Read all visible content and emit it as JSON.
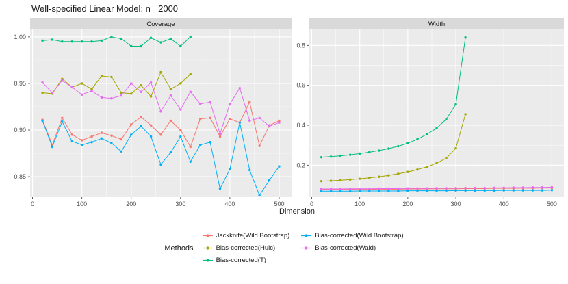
{
  "title": "Well-specified Linear Model: n= 2000",
  "xlabel": "Dimension",
  "legend": {
    "title": "Methods",
    "entries": [
      {
        "label": "Jackknife(Wild Bootstrap)",
        "color": "#F8766D"
      },
      {
        "label": "Bias-corrected(Hulc)",
        "color": "#A3A500"
      },
      {
        "label": "Bias-corrected(T)",
        "color": "#00BF7D"
      },
      {
        "label": "Bias-corrected(Wild Bootstrap)",
        "color": "#00B0F6"
      },
      {
        "label": "Bias-corrected(Wald)",
        "color": "#E76BF3"
      }
    ]
  },
  "theme": {
    "panel_bg": "#EBEBEB",
    "strip_bg": "#D9D9D9",
    "grid": "#FFFFFF",
    "axis_text": "#4D4D4D",
    "title_text": "#1A1A1A",
    "tick": "#333333"
  },
  "chart_data": [
    {
      "type": "line",
      "title": "Coverage",
      "xlabel": "Dimension",
      "xlim": [
        -5,
        525
      ],
      "ylim": [
        0.828,
        1.008
      ],
      "xticks": [
        0,
        100,
        200,
        300,
        400,
        500
      ],
      "xtick_labels": [
        "0",
        "100",
        "200",
        "300",
        "400",
        "500"
      ],
      "yticks": [
        0.85,
        0.9,
        0.95,
        1.0
      ],
      "ytick_labels": [
        "0.85",
        "0.90",
        "0.95",
        "1.00"
      ],
      "series": [
        {
          "name": "Jackknife(Wild Bootstrap)",
          "color": "#F8766D",
          "x": [
            20,
            40,
            60,
            80,
            100,
            120,
            140,
            160,
            180,
            200,
            220,
            240,
            260,
            280,
            300,
            320,
            340,
            360,
            380,
            400,
            420,
            440,
            460,
            480,
            500
          ],
          "values": [
            0.911,
            0.884,
            0.913,
            0.895,
            0.889,
            0.893,
            0.897,
            0.894,
            0.89,
            0.906,
            0.914,
            0.905,
            0.895,
            0.91,
            0.9,
            0.882,
            0.912,
            0.913,
            0.893,
            0.912,
            0.908,
            0.93,
            0.883,
            0.905,
            0.91
          ]
        },
        {
          "name": "Bias-corrected(Hulc)",
          "color": "#A3A500",
          "x": [
            20,
            40,
            60,
            80,
            100,
            120,
            140,
            160,
            180,
            200,
            220,
            240,
            260,
            280,
            300,
            320
          ],
          "values": [
            0.94,
            0.939,
            0.955,
            0.946,
            0.95,
            0.944,
            0.958,
            0.957,
            0.94,
            0.939,
            0.948,
            0.936,
            0.962,
            0.944,
            0.95,
            0.96
          ]
        },
        {
          "name": "Bias-corrected(T)",
          "color": "#00BF7D",
          "x": [
            20,
            40,
            60,
            80,
            100,
            120,
            140,
            160,
            180,
            200,
            220,
            240,
            260,
            280,
            300,
            320
          ],
          "values": [
            0.996,
            0.997,
            0.995,
            0.995,
            0.995,
            0.995,
            0.996,
            1.0,
            0.998,
            0.99,
            0.99,
            0.999,
            0.994,
            0.998,
            0.99,
            1.0
          ]
        },
        {
          "name": "Bias-corrected(Wild Bootstrap)",
          "color": "#00B0F6",
          "x": [
            20,
            40,
            60,
            80,
            100,
            120,
            140,
            160,
            180,
            200,
            220,
            240,
            260,
            280,
            300,
            320,
            340,
            360,
            380,
            400,
            420,
            440,
            460,
            480,
            500
          ],
          "values": [
            0.91,
            0.882,
            0.909,
            0.888,
            0.884,
            0.887,
            0.891,
            0.886,
            0.877,
            0.895,
            0.904,
            0.893,
            0.863,
            0.876,
            0.893,
            0.866,
            0.884,
            0.887,
            0.837,
            0.858,
            0.908,
            0.857,
            0.83,
            0.846,
            0.861
          ]
        },
        {
          "name": "Bias-corrected(Wald)",
          "color": "#E76BF3",
          "x": [
            20,
            40,
            60,
            80,
            100,
            120,
            140,
            160,
            180,
            200,
            220,
            240,
            260,
            280,
            300,
            320,
            340,
            360,
            380,
            400,
            420,
            440,
            460,
            480,
            500
          ],
          "values": [
            0.951,
            0.94,
            0.953,
            0.946,
            0.938,
            0.942,
            0.935,
            0.934,
            0.937,
            0.95,
            0.941,
            0.951,
            0.92,
            0.937,
            0.922,
            0.941,
            0.928,
            0.93,
            0.896,
            0.928,
            0.945,
            0.91,
            0.913,
            0.904,
            0.908
          ]
        }
      ]
    },
    {
      "type": "line",
      "title": "Width",
      "xlabel": "Dimension",
      "xlim": [
        -5,
        525
      ],
      "ylim": [
        0.04,
        0.88
      ],
      "xticks": [
        0,
        100,
        200,
        300,
        400,
        500
      ],
      "xtick_labels": [
        "0",
        "100",
        "200",
        "300",
        "400",
        "500"
      ],
      "yticks": [
        0.2,
        0.4,
        0.6,
        0.8
      ],
      "ytick_labels": [
        "0.2",
        "0.4",
        "0.6",
        "0.8"
      ],
      "series": [
        {
          "name": "Jackknife(Wild Bootstrap)",
          "color": "#F8766D",
          "x": [
            20,
            40,
            60,
            80,
            100,
            120,
            140,
            160,
            180,
            200,
            220,
            240,
            260,
            280,
            300,
            320,
            340,
            360,
            380,
            400,
            420,
            440,
            460,
            480,
            500
          ],
          "values": [
            0.078,
            0.078,
            0.078,
            0.079,
            0.079,
            0.079,
            0.08,
            0.08,
            0.08,
            0.081,
            0.081,
            0.081,
            0.082,
            0.082,
            0.082,
            0.083,
            0.083,
            0.083,
            0.084,
            0.084,
            0.084,
            0.085,
            0.085,
            0.086,
            0.086
          ]
        },
        {
          "name": "Bias-corrected(Hulc)",
          "color": "#A3A500",
          "x": [
            20,
            40,
            60,
            80,
            100,
            120,
            140,
            160,
            180,
            200,
            220,
            240,
            260,
            280,
            300,
            320
          ],
          "values": [
            0.12,
            0.122,
            0.125,
            0.128,
            0.132,
            0.137,
            0.142,
            0.149,
            0.157,
            0.166,
            0.178,
            0.192,
            0.21,
            0.235,
            0.285,
            0.455
          ]
        },
        {
          "name": "Bias-corrected(T)",
          "color": "#00BF7D",
          "x": [
            20,
            40,
            60,
            80,
            100,
            120,
            140,
            160,
            180,
            200,
            220,
            240,
            260,
            280,
            300,
            320
          ],
          "values": [
            0.24,
            0.243,
            0.247,
            0.252,
            0.258,
            0.265,
            0.273,
            0.283,
            0.295,
            0.31,
            0.33,
            0.355,
            0.385,
            0.43,
            0.505,
            0.84
          ]
        },
        {
          "name": "Bias-corrected(Wild Bootstrap)",
          "color": "#00B0F6",
          "x": [
            20,
            40,
            60,
            80,
            100,
            120,
            140,
            160,
            180,
            200,
            220,
            240,
            260,
            280,
            300,
            320,
            340,
            360,
            380,
            400,
            420,
            440,
            460,
            480,
            500
          ],
          "values": [
            0.07,
            0.07,
            0.07,
            0.07,
            0.071,
            0.071,
            0.071,
            0.071,
            0.071,
            0.072,
            0.072,
            0.072,
            0.072,
            0.072,
            0.073,
            0.073,
            0.073,
            0.073,
            0.073,
            0.074,
            0.074,
            0.074,
            0.074,
            0.074,
            0.075
          ]
        },
        {
          "name": "Bias-corrected(Wald)",
          "color": "#E76BF3",
          "x": [
            20,
            40,
            60,
            80,
            100,
            120,
            140,
            160,
            180,
            200,
            220,
            240,
            260,
            280,
            300,
            320,
            340,
            360,
            380,
            400,
            420,
            440,
            460,
            480,
            500
          ],
          "values": [
            0.081,
            0.081,
            0.081,
            0.082,
            0.082,
            0.082,
            0.083,
            0.083,
            0.083,
            0.084,
            0.084,
            0.084,
            0.085,
            0.085,
            0.085,
            0.086,
            0.086,
            0.086,
            0.087,
            0.087,
            0.088,
            0.088,
            0.089,
            0.089,
            0.09
          ]
        }
      ]
    }
  ]
}
